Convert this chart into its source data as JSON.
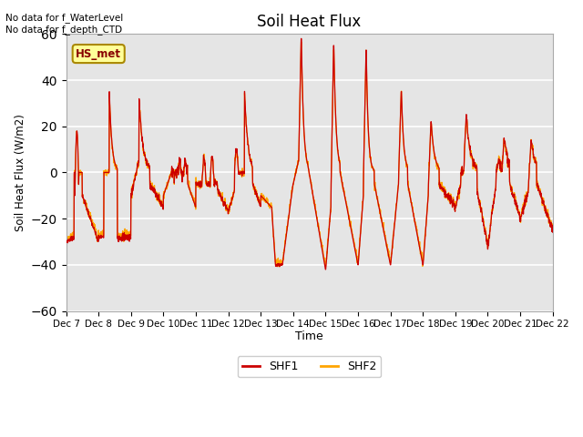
{
  "title": "Soil Heat Flux",
  "ylabel": "Soil Heat Flux (W/m2)",
  "xlabel": "Time",
  "ylim": [
    -60,
    60
  ],
  "yticks": [
    -60,
    -40,
    -20,
    0,
    20,
    40,
    60
  ],
  "background_color": "#e5e5e5",
  "figure_color": "#ffffff",
  "color_shf1": "#cc0000",
  "color_shf2": "#ffa500",
  "annotation_top": "No data for f_WaterLevel\nNo data for f_depth_CTD",
  "legend_box_label": "HS_met",
  "legend_box_facecolor": "#ffff99",
  "legend_box_edgecolor": "#aa8800",
  "x_tick_labels": [
    "Dec 7",
    "Dec 8",
    "Dec 9",
    "Dec 10",
    "Dec 11",
    "Dec 12",
    "Dec 13",
    "Dec 14",
    "Dec 15",
    "Dec 16",
    "Dec 17",
    "Dec 18",
    "Dec 19",
    "Dec 20",
    "Dec 21",
    "Dec 22"
  ],
  "n_days": 15,
  "ppd": 144
}
